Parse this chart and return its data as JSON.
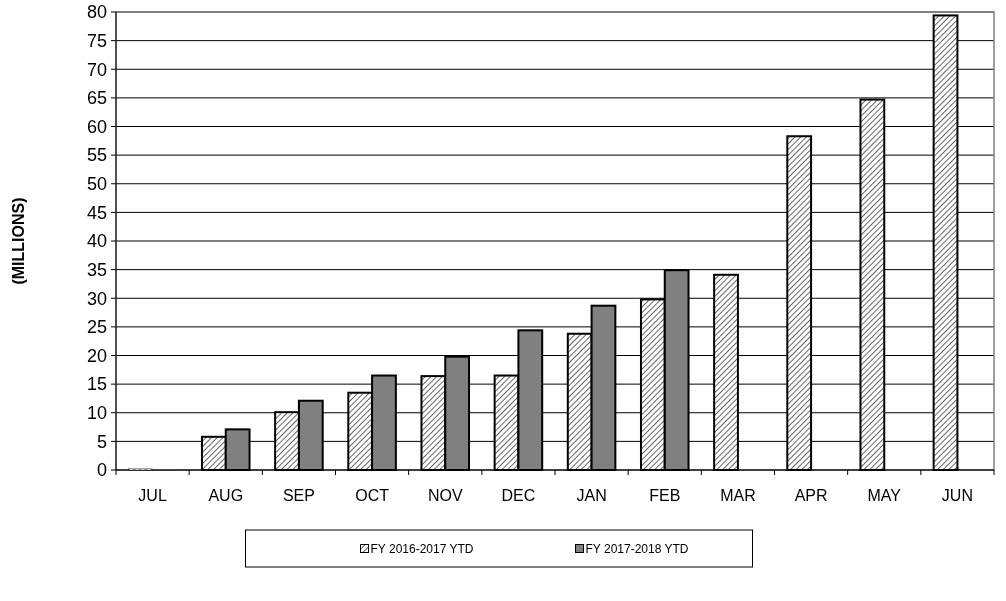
{
  "chart_data": {
    "type": "bar",
    "ylabel": "(MILLIONS)",
    "categories": [
      "JUL",
      "AUG",
      "SEP",
      "OCT",
      "NOV",
      "DEC",
      "JAN",
      "FEB",
      "MAR",
      "APR",
      "MAY",
      "JUN"
    ],
    "series": [
      {
        "name": "FY 2016-2017 YTD",
        "color": "#000000",
        "values": [
          0.2,
          5.8,
          10.1,
          13.5,
          16.4,
          16.5,
          23.8,
          29.8,
          34.1,
          58.3,
          64.7,
          79.4
        ]
      },
      {
        "name": "FY 2017-2018 YTD",
        "color": "#808080",
        "values": [
          0.1,
          7.1,
          12.1,
          16.5,
          19.8,
          24.4,
          28.7,
          34.9,
          null,
          null,
          null,
          null
        ]
      }
    ],
    "ylim": [
      0,
      80
    ],
    "yticks": [
      0,
      5,
      10,
      15,
      20,
      25,
      30,
      35,
      40,
      45,
      50,
      55,
      60,
      65,
      70,
      75,
      80
    ],
    "grid": "y",
    "legend": "bottom"
  }
}
